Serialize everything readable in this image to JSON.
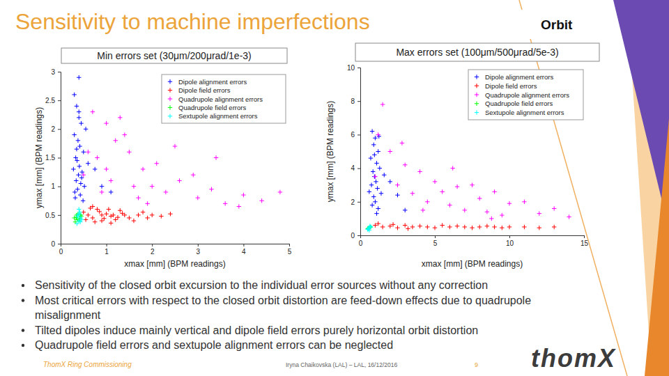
{
  "slide": {
    "title": "Sensitivity to machine imperfections",
    "section": "Orbit",
    "bullets": [
      [
        "Sensitivity of the closed orbit excursion to the individual error sources without any correction"
      ],
      [
        "Most critical errors with respect to the closed orbit distortion are feed-down effects due to quadrupole",
        "misalignment"
      ],
      [
        "Tilted dipoles induce mainly vertical and dipole field errors purely horizontal orbit distortion"
      ],
      [
        "Quadrupole field errors and sextupole alignment errors can be neglected"
      ]
    ],
    "footer_left": "ThomX Ring Commissioning",
    "footer_center": "Iryna Chaikovska (LAL) – LAL, 16/12/2016",
    "page": "9",
    "logo": "thomX"
  },
  "chart_data": [
    {
      "type": "scatter",
      "title": "Min errors set (30μm/200μrad/1e-3)",
      "xlabel": "xmax [mm] (BPM readings)",
      "ylabel": "ymax [mm] (BPM readings)",
      "xlim": [
        0,
        5
      ],
      "xticks": [
        0,
        1,
        2,
        3,
        4,
        5
      ],
      "ylim": [
        0,
        3
      ],
      "yticks": [
        0,
        0.5,
        1,
        1.5,
        2,
        2.5,
        3
      ],
      "grid": false,
      "legend": "upper right",
      "marker": "plus",
      "series": [
        {
          "name": "Dipole alignment errors",
          "color": "#0000ff",
          "x": [
            0.3,
            0.35,
            0.4,
            0.45,
            0.3,
            0.38,
            0.42,
            0.5,
            0.33,
            0.36,
            0.41,
            0.28,
            0.47,
            0.39,
            0.34,
            0.44,
            0.52,
            0.37,
            0.31,
            0.43,
            0.6,
            0.75,
            0.9,
            1.1,
            0.55,
            0.4,
            0.35,
            0.46,
            0.32,
            0.49,
            0.4
          ],
          "values": [
            2.6,
            2.4,
            2.2,
            2.1,
            1.9,
            1.8,
            1.7,
            1.6,
            1.5,
            1.45,
            1.35,
            1.3,
            1.25,
            1.2,
            1.1,
            1.05,
            1.0,
            0.95,
            0.9,
            0.85,
            1.4,
            1.3,
            1.0,
            0.9,
            2.0,
            2.3,
            1.65,
            1.15,
            0.8,
            0.75,
            2.9
          ]
        },
        {
          "name": "Dipole field errors",
          "color": "#ff0000",
          "x": [
            0.5,
            0.6,
            0.7,
            0.8,
            0.9,
            1.0,
            1.1,
            1.2,
            1.3,
            1.4,
            1.5,
            1.6,
            1.7,
            1.8,
            1.9,
            2.0,
            2.2,
            2.4,
            0.65,
            0.75,
            0.85,
            0.95,
            1.05,
            1.15,
            1.25,
            1.35,
            0.55,
            0.7,
            0.9,
            1.1
          ],
          "values": [
            0.55,
            0.5,
            0.45,
            0.6,
            0.4,
            0.52,
            0.48,
            0.42,
            0.58,
            0.5,
            0.45,
            0.4,
            0.5,
            0.55,
            0.45,
            0.5,
            0.48,
            0.52,
            0.62,
            0.38,
            0.56,
            0.44,
            0.6,
            0.5,
            0.46,
            0.53,
            0.42,
            0.65,
            0.5,
            0.36
          ]
        },
        {
          "name": "Quadrupole alignment errors",
          "color": "#ff00ff",
          "x": [
            0.5,
            0.8,
            1.0,
            1.2,
            1.5,
            1.8,
            2.0,
            2.3,
            2.6,
            3.0,
            3.3,
            3.6,
            4.0,
            4.4,
            4.8,
            0.7,
            1.1,
            1.4,
            1.7,
            2.1,
            2.5,
            2.9,
            3.4,
            3.9,
            0.9,
            1.3,
            1.6,
            1.9,
            0.6,
            1.0
          ],
          "values": [
            1.2,
            1.5,
            2.1,
            1.8,
            1.6,
            1.3,
            1.0,
            0.9,
            1.1,
            0.8,
            0.95,
            0.7,
            0.85,
            0.75,
            0.9,
            2.3,
            1.1,
            1.9,
            0.8,
            1.4,
            1.7,
            1.2,
            1.5,
            0.65,
            0.9,
            2.2,
            1.0,
            0.7,
            1.6,
            1.3
          ]
        },
        {
          "name": "Quadrupole field errors",
          "color": "#00ff00",
          "x": [
            0.3,
            0.35,
            0.4,
            0.45,
            0.32,
            0.38,
            0.42,
            0.36,
            0.44,
            0.34
          ],
          "values": [
            0.45,
            0.5,
            0.4,
            0.48,
            0.38,
            0.52,
            0.44,
            0.42,
            0.5,
            0.46
          ]
        },
        {
          "name": "Sextupole alignment errors",
          "color": "#00ffff",
          "x": [
            0.36,
            0.4,
            0.44,
            0.38,
            0.42,
            0.46,
            0.4,
            0.37,
            0.43,
            0.41
          ],
          "values": [
            0.35,
            0.4,
            0.45,
            0.5,
            0.55,
            0.42,
            0.6,
            0.47,
            0.38,
            0.52
          ]
        }
      ]
    },
    {
      "type": "scatter",
      "title": "Max errors set (100μm/500μrad/5e-3)",
      "xlabel": "xmax [mm] (BPM readings)",
      "ylabel": "ymax [mm] (BPM readings)",
      "xlim": [
        0,
        15
      ],
      "xticks": [
        0,
        5,
        10,
        15
      ],
      "ylim": [
        0,
        10
      ],
      "yticks": [
        0,
        2,
        4,
        6,
        8,
        10
      ],
      "grid": false,
      "legend": "upper right",
      "marker": "plus",
      "series": [
        {
          "name": "Dipole alignment errors",
          "color": "#0000ff",
          "x": [
            0.8,
            1.0,
            0.9,
            1.2,
            0.7,
            1.1,
            1.3,
            0.85,
            0.95,
            1.05,
            0.75,
            1.15,
            1.4,
            0.9,
            1.0,
            0.8,
            1.6,
            1.2,
            0.95,
            1.1,
            2.0,
            2.5,
            3.0,
            0.6,
            1.25
          ],
          "values": [
            6.2,
            5.8,
            5.4,
            5.0,
            4.6,
            4.3,
            4.0,
            3.8,
            3.5,
            3.2,
            3.0,
            2.8,
            2.5,
            2.3,
            2.0,
            1.8,
            3.6,
            1.6,
            4.8,
            1.3,
            3.2,
            2.4,
            1.5,
            2.6,
            5.9
          ]
        },
        {
          "name": "Dipole field errors",
          "color": "#ff0000",
          "x": [
            1,
            1.5,
            2,
            2.5,
            3,
            3.5,
            4,
            4.5,
            5,
            5.5,
            6,
            6.5,
            7,
            7.5,
            8,
            8.5,
            9,
            9.5,
            10,
            11,
            12,
            13,
            1.2,
            2.2,
            3.2
          ],
          "values": [
            0.6,
            0.5,
            0.55,
            0.45,
            0.6,
            0.5,
            0.55,
            0.5,
            0.45,
            0.6,
            0.5,
            0.55,
            0.5,
            0.45,
            0.5,
            0.55,
            0.5,
            0.45,
            0.5,
            0.5,
            0.45,
            0.5,
            0.7,
            0.65,
            0.4
          ]
        },
        {
          "name": "Quadrupole alignment errors",
          "color": "#ff00ff",
          "x": [
            1,
            1.5,
            2,
            2.5,
            3,
            3.5,
            4,
            4.5,
            5,
            5.5,
            6,
            6.5,
            7,
            7.5,
            8,
            8.5,
            9,
            9.5,
            10,
            11,
            12,
            13,
            14,
            1.2,
            2.8,
            4.2,
            6.2,
            8.8
          ],
          "values": [
            3.5,
            7.8,
            5.0,
            3.0,
            4.2,
            2.5,
            3.8,
            2.0,
            3.2,
            2.6,
            1.8,
            2.9,
            1.5,
            3.0,
            2.2,
            1.4,
            2.6,
            1.2,
            1.9,
            2.0,
            1.3,
            1.6,
            1.1,
            6.0,
            5.5,
            1.5,
            4.0,
            1.0
          ]
        },
        {
          "name": "Quadrupole field errors",
          "color": "#00ff00",
          "x": [
            0.5,
            0.6,
            0.7,
            0.55,
            0.65
          ],
          "values": [
            0.4,
            0.45,
            0.5,
            0.42,
            0.48
          ]
        },
        {
          "name": "Sextupole alignment errors",
          "color": "#00ffff",
          "x": [
            0.5,
            0.6,
            0.7,
            0.55,
            0.65,
            0.6
          ],
          "values": [
            0.35,
            0.45,
            0.5,
            0.4,
            0.55,
            0.3
          ]
        }
      ]
    }
  ]
}
